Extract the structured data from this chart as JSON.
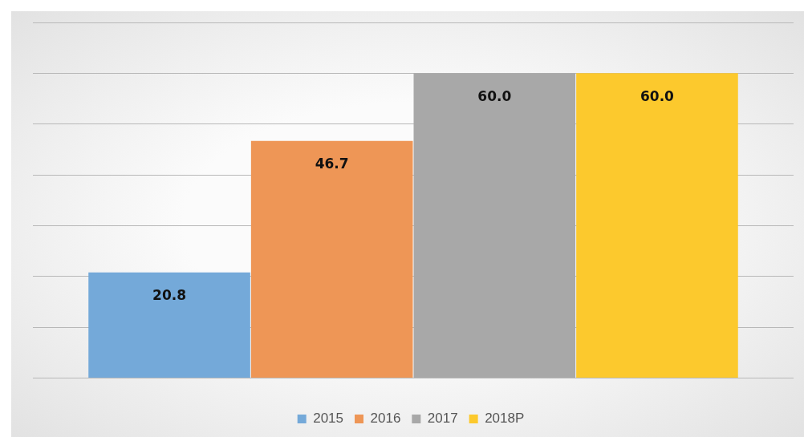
{
  "chart_data": {
    "type": "bar",
    "categories": [
      null
    ],
    "series": [
      {
        "name": "2015",
        "color": "#74a9d9",
        "values": [
          20.8
        ],
        "value_labels": [
          "20.8"
        ]
      },
      {
        "name": "2016",
        "color": "#ee9656",
        "values": [
          46.7
        ],
        "value_labels": [
          "46.7"
        ]
      },
      {
        "name": "2017",
        "color": "#a8a8a8",
        "values": [
          60.0
        ],
        "value_labels": [
          "60.0"
        ]
      },
      {
        "name": "2018P",
        "color": "#fcc92d",
        "values": [
          60.0
        ],
        "value_labels": [
          "60.0"
        ]
      }
    ],
    "yticks": [
      {
        "value": 0,
        "label": null
      },
      {
        "value": 10,
        "label": null
      },
      {
        "value": 20,
        "label": null
      },
      {
        "value": 30,
        "label": null
      },
      {
        "value": 40,
        "label": null
      },
      {
        "value": 50,
        "label": null
      },
      {
        "value": 60,
        "label": null
      },
      {
        "value": 70,
        "label": null
      }
    ],
    "grid": "y",
    "legend": "bottom"
  }
}
